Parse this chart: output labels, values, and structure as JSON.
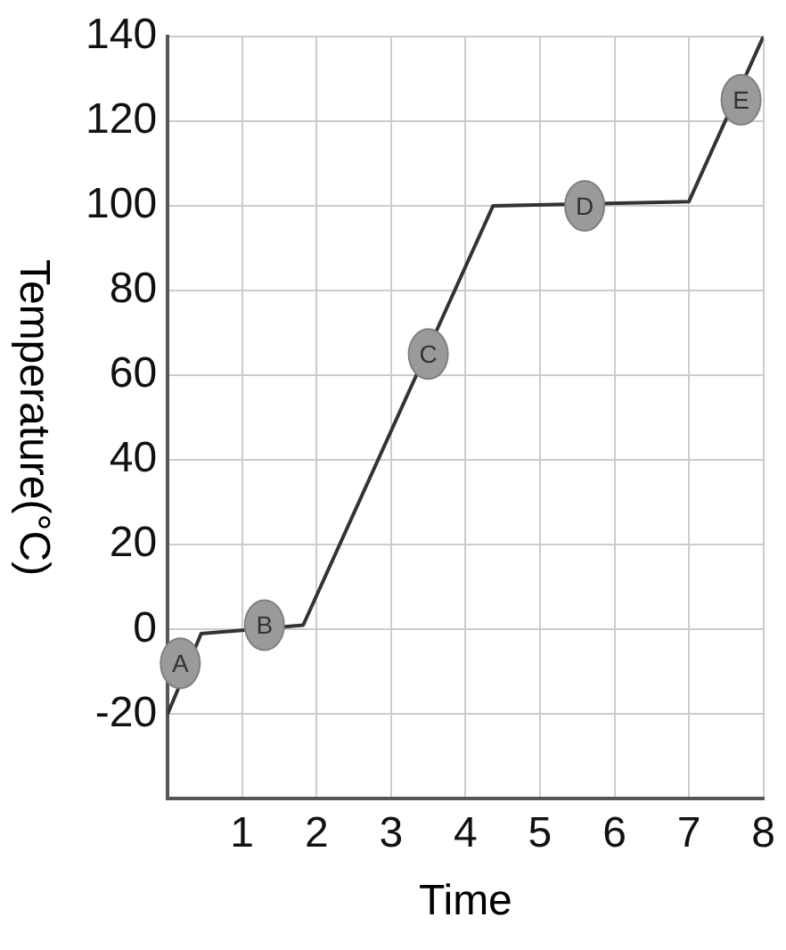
{
  "chart_data": {
    "type": "line",
    "xlabel": "Time",
    "ylabel": "Temperature(°C)",
    "x": [
      0,
      0.45,
      1.82,
      4.37,
      7.0,
      8
    ],
    "values": [
      -20,
      -1,
      1,
      100,
      101,
      140
    ],
    "color": "#333333",
    "xlim": [
      0,
      8
    ],
    "xticks": [
      1,
      2,
      3,
      4,
      5,
      6,
      7,
      8
    ],
    "ylim": [
      -40,
      140
    ],
    "yticks": [
      -20,
      0,
      20,
      40,
      60,
      80,
      100,
      120,
      140
    ],
    "grid": true,
    "legend": false,
    "marker": "none",
    "line_style": "solid",
    "annotations": [
      {
        "text": "A",
        "x": 0.17,
        "y": -8
      },
      {
        "text": "B",
        "x": 1.3,
        "y": 1
      },
      {
        "text": "C",
        "x": 3.5,
        "y": 65
      },
      {
        "text": "D",
        "x": 5.6,
        "y": 100
      },
      {
        "text": "E",
        "x": 7.7,
        "y": 125
      }
    ]
  }
}
